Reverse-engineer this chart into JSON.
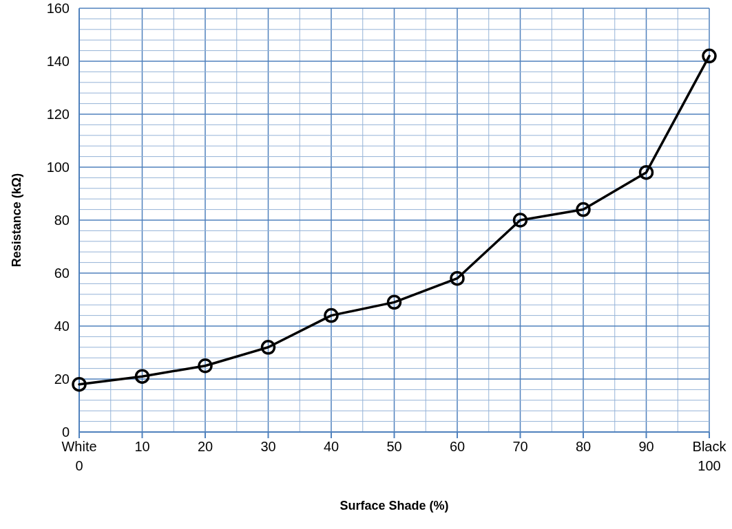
{
  "chart_data": {
    "type": "line",
    "xlabel": "Surface Shade (%)",
    "ylabel": "Resistance (kΩ)",
    "x": [
      0,
      10,
      20,
      30,
      40,
      50,
      60,
      70,
      80,
      90,
      100
    ],
    "series": [
      {
        "color": "#000000",
        "values": [
          18,
          21,
          25,
          32,
          44,
          49,
          58,
          80,
          84,
          98,
          142
        ]
      }
    ],
    "xlim": [
      0,
      100
    ],
    "xticks": [
      {
        "value": 0,
        "label": "White\n0"
      },
      {
        "value": 5,
        "label": null
      },
      10,
      {
        "value": 15,
        "label": null
      },
      20,
      {
        "value": 25,
        "label": null
      },
      30,
      {
        "value": 35,
        "label": null
      },
      40,
      {
        "value": 45,
        "label": null
      },
      50,
      {
        "value": 55,
        "label": null
      },
      60,
      {
        "value": 65,
        "label": null
      },
      70,
      {
        "value": 75,
        "label": null
      },
      80,
      {
        "value": 85,
        "label": null
      },
      90,
      {
        "value": 95,
        "label": null
      },
      {
        "value": 100,
        "label": "Black\n100"
      }
    ],
    "ylim": [
      0,
      160
    ],
    "yticks": [
      0,
      {
        "value": 4,
        "label": null
      },
      {
        "value": 8,
        "label": null
      },
      {
        "value": 12,
        "label": null
      },
      {
        "value": 16,
        "label": null
      },
      20,
      {
        "value": 24,
        "label": null
      },
      {
        "value": 28,
        "label": null
      },
      {
        "value": 32,
        "label": null
      },
      {
        "value": 36,
        "label": null
      },
      40,
      {
        "value": 44,
        "label": null
      },
      {
        "value": 48,
        "label": null
      },
      {
        "value": 52,
        "label": null
      },
      {
        "value": 56,
        "label": null
      },
      60,
      {
        "value": 64,
        "label": null
      },
      {
        "value": 68,
        "label": null
      },
      {
        "value": 72,
        "label": null
      },
      {
        "value": 76,
        "label": null
      },
      80,
      {
        "value": 84,
        "label": null
      },
      {
        "value": 88,
        "label": null
      },
      {
        "value": 92,
        "label": null
      },
      {
        "value": 96,
        "label": null
      },
      100,
      {
        "value": 104,
        "label": null
      },
      {
        "value": 108,
        "label": null
      },
      {
        "value": 112,
        "label": null
      },
      {
        "value": 116,
        "label": null
      },
      120,
      {
        "value": 124,
        "label": null
      },
      {
        "value": 128,
        "label": null
      },
      {
        "value": 132,
        "label": null
      },
      {
        "value": 136,
        "label": null
      },
      140,
      {
        "value": 144,
        "label": null
      },
      {
        "value": 148,
        "label": null
      },
      {
        "value": 152,
        "label": null
      },
      {
        "value": 156,
        "label": null
      },
      160
    ],
    "grid": true,
    "marker": "circle",
    "line_style": "solid"
  }
}
